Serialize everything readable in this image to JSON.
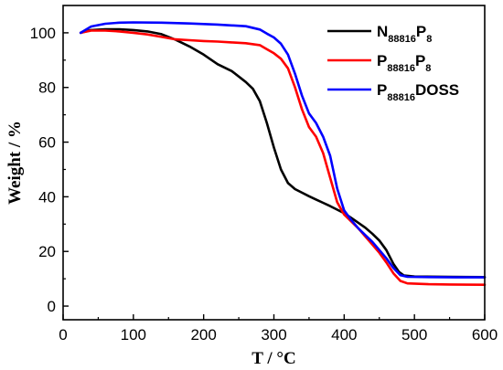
{
  "chart_data": {
    "type": "line",
    "xlabel": "T / °C",
    "ylabel": "Weight / %",
    "xlim": [
      0,
      600
    ],
    "ylim": [
      -5,
      110
    ],
    "xticks": [
      0,
      100,
      200,
      300,
      400,
      500,
      600
    ],
    "yticks": [
      0,
      20,
      40,
      60,
      80,
      100
    ],
    "grid": false,
    "legend_position": "top-right",
    "series": [
      {
        "name": "N88816P8",
        "color": "#000000",
        "points": [
          [
            25,
            100
          ],
          [
            40,
            101
          ],
          [
            60,
            101.3
          ],
          [
            80,
            101.3
          ],
          [
            100,
            101
          ],
          [
            120,
            100.5
          ],
          [
            140,
            99.5
          ],
          [
            160,
            97.5
          ],
          [
            180,
            95
          ],
          [
            200,
            92
          ],
          [
            220,
            88.5
          ],
          [
            240,
            86
          ],
          [
            260,
            82
          ],
          [
            270,
            79.5
          ],
          [
            280,
            75
          ],
          [
            290,
            67
          ],
          [
            300,
            58
          ],
          [
            310,
            50
          ],
          [
            320,
            45
          ],
          [
            330,
            42.8
          ],
          [
            340,
            41.5
          ],
          [
            350,
            40.2
          ],
          [
            360,
            39
          ],
          [
            370,
            37.8
          ],
          [
            380,
            36.6
          ],
          [
            390,
            35.3
          ],
          [
            400,
            34
          ],
          [
            410,
            32.3
          ],
          [
            420,
            30.5
          ],
          [
            430,
            28.7
          ],
          [
            440,
            26.5
          ],
          [
            450,
            24
          ],
          [
            460,
            20.5
          ],
          [
            470,
            15.5
          ],
          [
            478,
            12.5
          ],
          [
            485,
            11.2
          ],
          [
            500,
            10.8
          ],
          [
            550,
            10.7
          ],
          [
            600,
            10.6
          ]
        ]
      },
      {
        "name": "P88816P8",
        "color": "#ff0000",
        "points": [
          [
            25,
            100
          ],
          [
            40,
            100.8
          ],
          [
            60,
            100.8
          ],
          [
            80,
            100.5
          ],
          [
            100,
            100
          ],
          [
            120,
            99.4
          ],
          [
            140,
            98.5
          ],
          [
            160,
            97.6
          ],
          [
            180,
            97.3
          ],
          [
            200,
            97
          ],
          [
            220,
            96.8
          ],
          [
            240,
            96.5
          ],
          [
            260,
            96.2
          ],
          [
            280,
            95.5
          ],
          [
            290,
            94
          ],
          [
            300,
            92.5
          ],
          [
            310,
            90.5
          ],
          [
            320,
            87
          ],
          [
            330,
            80
          ],
          [
            340,
            72
          ],
          [
            350,
            65.5
          ],
          [
            360,
            62
          ],
          [
            370,
            56
          ],
          [
            380,
            47
          ],
          [
            390,
            38
          ],
          [
            400,
            33.5
          ],
          [
            410,
            31
          ],
          [
            420,
            28.5
          ],
          [
            430,
            25.5
          ],
          [
            440,
            22.5
          ],
          [
            450,
            19.5
          ],
          [
            460,
            16
          ],
          [
            470,
            12
          ],
          [
            480,
            9.2
          ],
          [
            490,
            8.3
          ],
          [
            520,
            8
          ],
          [
            550,
            7.9
          ],
          [
            600,
            7.8
          ]
        ]
      },
      {
        "name": "P88816DOSS",
        "color": "#0000ff",
        "points": [
          [
            25,
            100
          ],
          [
            40,
            102.3
          ],
          [
            60,
            103.3
          ],
          [
            80,
            103.7
          ],
          [
            100,
            103.8
          ],
          [
            140,
            103.7
          ],
          [
            180,
            103.4
          ],
          [
            220,
            103
          ],
          [
            260,
            102.4
          ],
          [
            280,
            101.2
          ],
          [
            290,
            99.7
          ],
          [
            300,
            98.3
          ],
          [
            310,
            96
          ],
          [
            320,
            92
          ],
          [
            330,
            85
          ],
          [
            340,
            77
          ],
          [
            350,
            70.5
          ],
          [
            360,
            67
          ],
          [
            370,
            62
          ],
          [
            380,
            55
          ],
          [
            390,
            43
          ],
          [
            400,
            35
          ],
          [
            410,
            31.5
          ],
          [
            420,
            28.5
          ],
          [
            430,
            26
          ],
          [
            440,
            23.5
          ],
          [
            450,
            20.5
          ],
          [
            460,
            17.5
          ],
          [
            470,
            14
          ],
          [
            480,
            11.3
          ],
          [
            490,
            10.7
          ],
          [
            520,
            10.6
          ],
          [
            560,
            10.5
          ],
          [
            600,
            10.5
          ]
        ]
      }
    ]
  }
}
